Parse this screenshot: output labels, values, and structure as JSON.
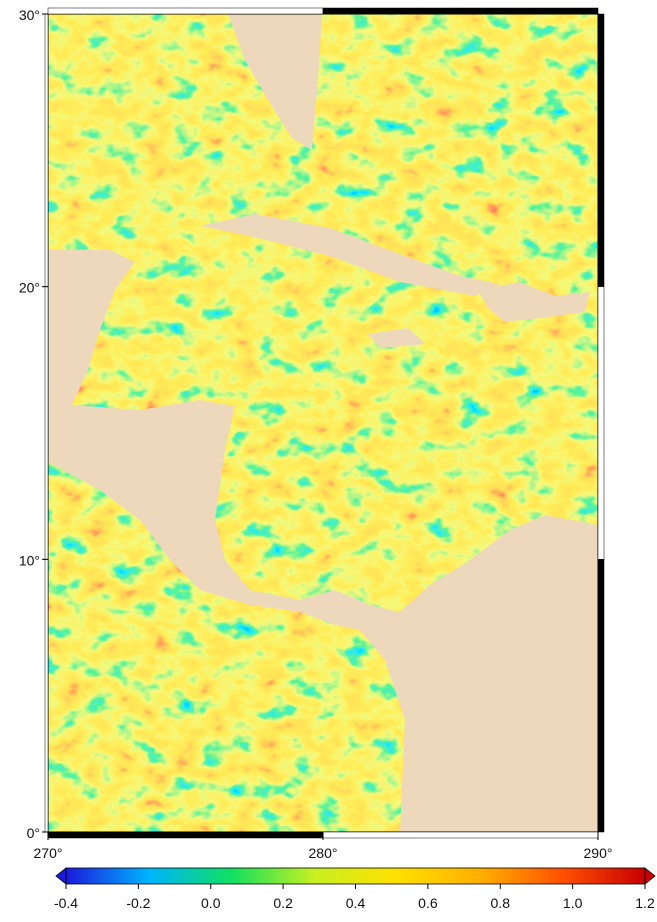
{
  "map": {
    "lon_range": [
      270,
      290
    ],
    "lat_range": [
      0,
      30
    ],
    "lat_ticks": [
      {
        "value": 30,
        "label": "30°"
      },
      {
        "value": 20,
        "label": "20°"
      },
      {
        "value": 10,
        "label": "10°"
      },
      {
        "value": 0,
        "label": "0°"
      }
    ],
    "lon_ticks": [
      {
        "value": 270,
        "label": "270°"
      },
      {
        "value": 280,
        "label": "280°"
      },
      {
        "value": 290,
        "label": "290°"
      }
    ],
    "land_color": "#eed8bb"
  },
  "colorbar": {
    "range": [
      -0.4,
      1.2
    ],
    "ticks": [
      -0.4,
      -0.2,
      {
        "value": 0,
        "label": "0.0"
      },
      0.2,
      0.4,
      0.6,
      0.8,
      {
        "value": 1,
        "label": "1.0"
      },
      1.2
    ],
    "colors": [
      "#1a1adc",
      "#00b4ff",
      "#10e060",
      "#c8f020",
      "#ffe000",
      "#ffb000",
      "#ff5000",
      "#c80000"
    ]
  }
}
